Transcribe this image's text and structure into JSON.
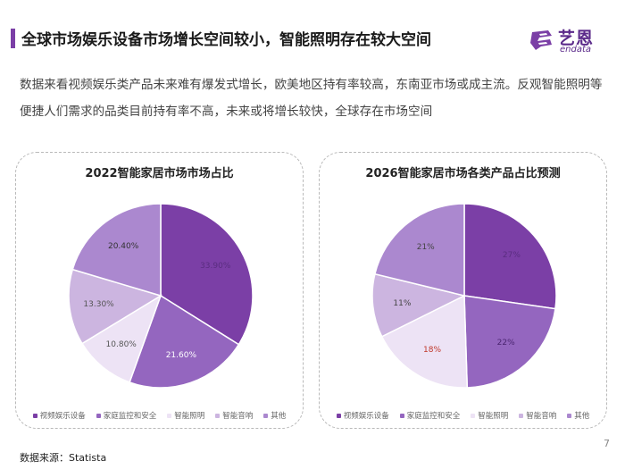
{
  "header": {
    "title": "全球市场娱乐设备市场增长空间较小，智能照明存在较大空间",
    "logo_cn": "艺恩",
    "logo_en": "endata"
  },
  "intro": {
    "text": "数据来看视频娱乐类产品未来难有爆发式增长，欧美地区持有率较高，东南亚市场或成主流。反观智能照明等便捷人们需求的品类目前持有率不高，未来或将增长较快，全球存在市场空间"
  },
  "chart_data": [
    {
      "type": "pie",
      "title": "2022智能家居市场市场占比",
      "categories": [
        "视频娱乐设备",
        "家庭监控和安全",
        "智能照明",
        "智能音响",
        "其他"
      ],
      "values": [
        33.9,
        21.6,
        10.8,
        13.3,
        20.4
      ],
      "labels": [
        "33.90%",
        "21.60%",
        "10.80%",
        "13.30%",
        "20.40%"
      ],
      "colors": [
        "#7b3fa6",
        "#9466bf",
        "#ede3f5",
        "#ccb5e0",
        "#ab88cf"
      ],
      "label_colors": [
        "#5a2d80",
        "#ffffff",
        "#555555",
        "#555555",
        "#333333"
      ],
      "start_angle_deg": 0
    },
    {
      "type": "pie",
      "title": "2026智能家居市场各类产品占比预测",
      "categories": [
        "视频娱乐设备",
        "家庭监控和安全",
        "智能照明",
        "智能音响",
        "其他"
      ],
      "values": [
        27,
        22,
        18,
        11,
        21
      ],
      "labels": [
        "27%",
        "22%",
        "18%",
        "11%",
        "21%"
      ],
      "colors": [
        "#7b3fa6",
        "#9466bf",
        "#ede3f5",
        "#ccb5e0",
        "#ab88cf"
      ],
      "label_colors": [
        "#5a2d80",
        "#4a2570",
        "#c0392b",
        "#444444",
        "#444444"
      ],
      "start_angle_deg": 0
    }
  ],
  "legend_colors": [
    "#7b3fa6",
    "#9466bf",
    "#ede3f5",
    "#ccb5e0",
    "#ab88cf"
  ],
  "footer": {
    "source": "数据来源：Statista",
    "page": "7"
  }
}
